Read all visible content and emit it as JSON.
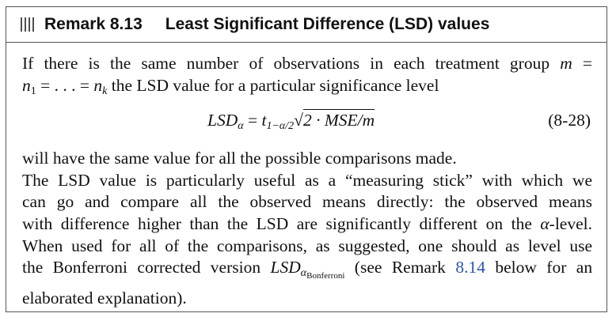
{
  "remark": {
    "label": "Remark 8.13",
    "title": "Least Significant Difference (LSD) values",
    "icon": "bars-icon"
  },
  "paragraph1": {
    "line1": "If there is the same number of observations in each treatment group",
    "m": "m",
    "eq": "=",
    "n1": "n",
    "n1_sub": "1",
    "mid": "= . . . =",
    "nk": "n",
    "nk_sub": "k",
    "line2_rest": "the LSD value for a particular significance level"
  },
  "equation": {
    "lhs": "LSD",
    "lhs_sub": "α",
    "equals": "=",
    "t": "t",
    "t_sub": "1−α/2",
    "sqrt": "√",
    "radicand": "2 · MSE/m",
    "number": "(8-28)"
  },
  "paragraph2": {
    "line1": "will have the same value for all the possible comparisons made.",
    "line2": "The LSD value is particularly useful as a “measuring stick” with which we",
    "line3": "can go and compare all the observed means directly: the observed means",
    "line4_pre": "with difference higher than the LSD are significantly different on the",
    "alpha": "α",
    "line4_post": "-level.",
    "line5": "When used for all of the comparisons, as suggested, one should as level use",
    "line6_pre": "the Bonferroni corrected version",
    "lsd": "LSD",
    "lsd_sub": "α",
    "lsd_subsub": "Bonferroni",
    "line6_mid": "(see Remark",
    "ref": "8.14",
    "line6_post": "below for an",
    "line7": "elaborated explanation)."
  }
}
